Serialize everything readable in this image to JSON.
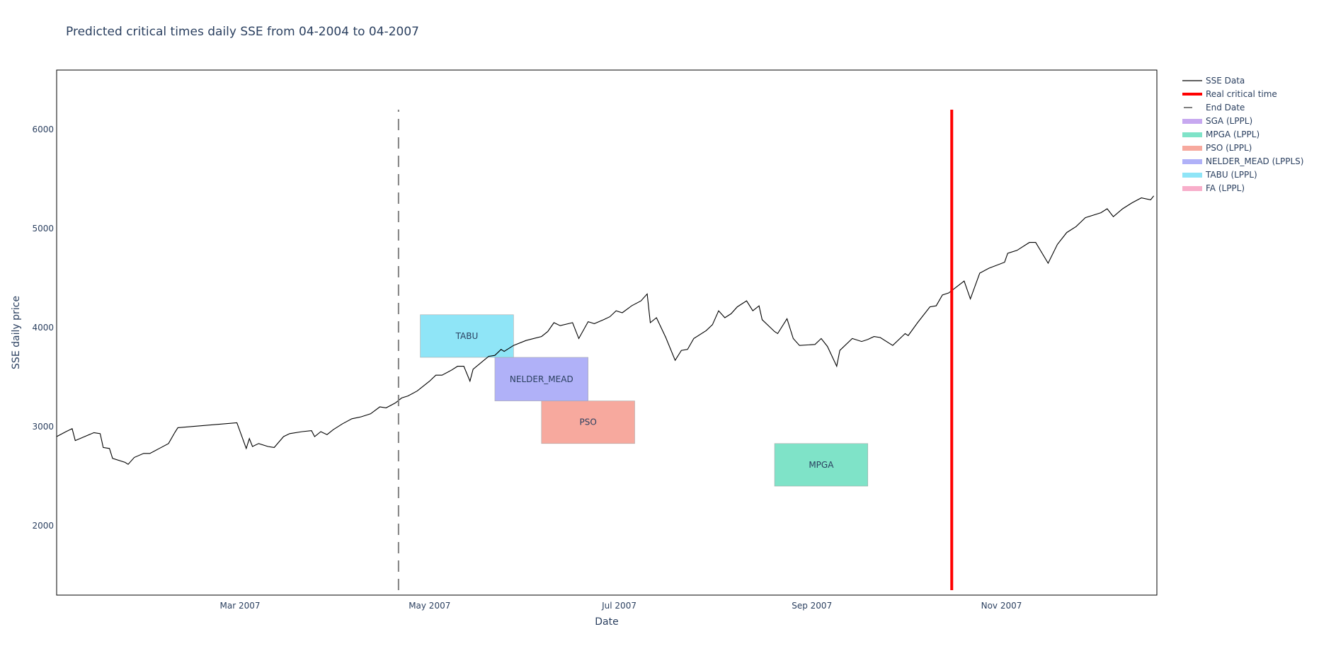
{
  "chart_data": {
    "type": "line",
    "title": "Predicted critical times daily SSE from 04-2004 to 04-2007",
    "xlabel": "Date",
    "ylabel": "SSE daily price",
    "x_range": [
      "2007-01-01",
      "2007-12-21"
    ],
    "y_range": [
      1300,
      6600
    ],
    "x_ticks": [
      {
        "date": "2007-03-01",
        "label": "Mar 2007"
      },
      {
        "date": "2007-05-01",
        "label": "May 2007"
      },
      {
        "date": "2007-07-01",
        "label": "Jul 2007"
      },
      {
        "date": "2007-09-01",
        "label": "Sep 2007"
      },
      {
        "date": "2007-11-01",
        "label": "Nov 2007"
      }
    ],
    "y_ticks": [
      {
        "value": 2000,
        "label": "2000"
      },
      {
        "value": 3000,
        "label": "3000"
      },
      {
        "value": 4000,
        "label": "4000"
      },
      {
        "value": 5000,
        "label": "5000"
      },
      {
        "value": 6000,
        "label": "6000"
      }
    ],
    "grid": false,
    "legend_position": "right",
    "series": [
      {
        "name": "SSE Data",
        "color": "#000000",
        "points": [
          [
            "2007-01-01",
            2900
          ],
          [
            "2007-01-04",
            2950
          ],
          [
            "2007-01-06",
            2980
          ],
          [
            "2007-01-07",
            2860
          ],
          [
            "2007-01-10",
            2900
          ],
          [
            "2007-01-13",
            2940
          ],
          [
            "2007-01-15",
            2930
          ],
          [
            "2007-01-16",
            2790
          ],
          [
            "2007-01-18",
            2780
          ],
          [
            "2007-01-19",
            2680
          ],
          [
            "2007-01-23",
            2640
          ],
          [
            "2007-01-24",
            2620
          ],
          [
            "2007-01-26",
            2690
          ],
          [
            "2007-01-29",
            2730
          ],
          [
            "2007-01-31",
            2730
          ],
          [
            "2007-02-03",
            2780
          ],
          [
            "2007-02-06",
            2830
          ],
          [
            "2007-02-08",
            2940
          ],
          [
            "2007-02-09",
            2990
          ],
          [
            "2007-02-28",
            3040
          ],
          [
            "2007-03-03",
            2780
          ],
          [
            "2007-03-04",
            2880
          ],
          [
            "2007-03-05",
            2800
          ],
          [
            "2007-03-07",
            2830
          ],
          [
            "2007-03-10",
            2800
          ],
          [
            "2007-03-12",
            2790
          ],
          [
            "2007-03-15",
            2900
          ],
          [
            "2007-03-17",
            2930
          ],
          [
            "2007-03-21",
            2950
          ],
          [
            "2007-03-24",
            2960
          ],
          [
            "2007-03-25",
            2900
          ],
          [
            "2007-03-27",
            2950
          ],
          [
            "2007-03-29",
            2920
          ],
          [
            "2007-03-31",
            2970
          ],
          [
            "2007-04-03",
            3030
          ],
          [
            "2007-04-06",
            3080
          ],
          [
            "2007-04-09",
            3100
          ],
          [
            "2007-04-12",
            3130
          ],
          [
            "2007-04-15",
            3200
          ],
          [
            "2007-04-17",
            3190
          ],
          [
            "2007-04-20",
            3240
          ],
          [
            "2007-04-22",
            3290
          ],
          [
            "2007-04-24",
            3310
          ],
          [
            "2007-04-27",
            3360
          ],
          [
            "2007-04-29",
            3410
          ],
          [
            "2007-05-01",
            3460
          ],
          [
            "2007-05-03",
            3520
          ],
          [
            "2007-05-05",
            3520
          ],
          [
            "2007-05-08",
            3570
          ],
          [
            "2007-05-10",
            3610
          ],
          [
            "2007-05-12",
            3610
          ],
          [
            "2007-05-14",
            3460
          ],
          [
            "2007-05-15",
            3580
          ],
          [
            "2007-05-20",
            3710
          ],
          [
            "2007-05-22",
            3720
          ],
          [
            "2007-05-24",
            3780
          ],
          [
            "2007-05-25",
            3760
          ],
          [
            "2007-05-28",
            3820
          ],
          [
            "2007-06-01",
            3870
          ],
          [
            "2007-06-06",
            3910
          ],
          [
            "2007-06-08",
            3960
          ],
          [
            "2007-06-10",
            4050
          ],
          [
            "2007-06-12",
            4020
          ],
          [
            "2007-06-16",
            4050
          ],
          [
            "2007-06-18",
            3890
          ],
          [
            "2007-06-21",
            4060
          ],
          [
            "2007-06-23",
            4040
          ],
          [
            "2007-06-26",
            4080
          ],
          [
            "2007-06-28",
            4110
          ],
          [
            "2007-06-30",
            4170
          ],
          [
            "2007-07-02",
            4150
          ],
          [
            "2007-07-05",
            4220
          ],
          [
            "2007-07-08",
            4270
          ],
          [
            "2007-07-10",
            4340
          ],
          [
            "2007-07-11",
            4050
          ],
          [
            "2007-07-13",
            4100
          ],
          [
            "2007-07-16",
            3900
          ],
          [
            "2007-07-19",
            3670
          ],
          [
            "2007-07-21",
            3770
          ],
          [
            "2007-07-23",
            3780
          ],
          [
            "2007-07-25",
            3890
          ],
          [
            "2007-07-29",
            3970
          ],
          [
            "2007-07-31",
            4030
          ],
          [
            "2007-08-02",
            4170
          ],
          [
            "2007-08-04",
            4100
          ],
          [
            "2007-08-06",
            4140
          ],
          [
            "2007-08-08",
            4210
          ],
          [
            "2007-08-11",
            4270
          ],
          [
            "2007-08-13",
            4170
          ],
          [
            "2007-08-15",
            4220
          ],
          [
            "2007-08-16",
            4080
          ],
          [
            "2007-08-20",
            3960
          ],
          [
            "2007-08-21",
            3940
          ],
          [
            "2007-08-24",
            4090
          ],
          [
            "2007-08-26",
            3890
          ],
          [
            "2007-08-28",
            3820
          ],
          [
            "2007-09-02",
            3830
          ],
          [
            "2007-09-04",
            3890
          ],
          [
            "2007-09-06",
            3810
          ],
          [
            "2007-09-09",
            3610
          ],
          [
            "2007-09-10",
            3770
          ],
          [
            "2007-09-14",
            3890
          ],
          [
            "2007-09-17",
            3860
          ],
          [
            "2007-09-19",
            3880
          ],
          [
            "2007-09-21",
            3910
          ],
          [
            "2007-09-23",
            3900
          ],
          [
            "2007-09-27",
            3820
          ],
          [
            "2007-10-01",
            3940
          ],
          [
            "2007-10-02",
            3920
          ],
          [
            "2007-10-05",
            4050
          ],
          [
            "2007-10-09",
            4210
          ],
          [
            "2007-10-11",
            4220
          ],
          [
            "2007-10-13",
            4330
          ],
          [
            "2007-10-15",
            4350
          ],
          [
            "2007-10-20",
            4470
          ],
          [
            "2007-10-22",
            4290
          ],
          [
            "2007-10-25",
            4550
          ],
          [
            "2007-10-28",
            4600
          ],
          [
            "2007-11-02",
            4660
          ],
          [
            "2007-11-03",
            4750
          ],
          [
            "2007-11-06",
            4780
          ],
          [
            "2007-11-10",
            4860
          ],
          [
            "2007-11-12",
            4860
          ],
          [
            "2007-11-16",
            4650
          ],
          [
            "2007-11-19",
            4840
          ],
          [
            "2007-11-22",
            4960
          ],
          [
            "2007-11-25",
            5020
          ],
          [
            "2007-11-28",
            5110
          ],
          [
            "2007-12-03",
            5160
          ],
          [
            "2007-12-05",
            5200
          ],
          [
            "2007-12-07",
            5120
          ],
          [
            "2007-12-10",
            5200
          ],
          [
            "2007-12-13",
            5260
          ],
          [
            "2007-12-16",
            5310
          ],
          [
            "2007-12-19",
            5290
          ],
          [
            "2007-12-20",
            5330
          ]
        ]
      }
    ],
    "vertical_lines": [
      {
        "name": "Real critical time",
        "date": "2007-10-16",
        "y": [
          1350,
          6200
        ],
        "color": "#ff0000",
        "dash": "solid"
      },
      {
        "name": "End Date",
        "date": "2007-04-21",
        "y": [
          1350,
          6200
        ],
        "color": "#808080",
        "dash": "dash"
      }
    ],
    "prediction_ranges": [
      {
        "name": "SGA (LPPL)",
        "color": "#c7a8f0",
        "label": "",
        "visible": false
      },
      {
        "name": "MPGA (LPPL)",
        "color": "#7fe3c8",
        "label": "MPGA",
        "x": [
          "2007-08-20",
          "2007-09-19"
        ],
        "y": [
          2400,
          2830
        ],
        "visible": true
      },
      {
        "name": "PSO (LPPL)",
        "color": "#f7a99e",
        "label": "PSO",
        "x": [
          "2007-06-06",
          "2007-07-06"
        ],
        "y": [
          2830,
          3260
        ],
        "visible": true
      },
      {
        "name": "NELDER_MEAD (LPPLS)",
        "color": "#b0b1f8",
        "label": "NELDER_MEAD",
        "x": [
          "2007-05-22",
          "2007-06-21"
        ],
        "y": [
          3260,
          3700
        ],
        "visible": true
      },
      {
        "name": "TABU (LPPL)",
        "color": "#8fe5f7",
        "label": "TABU",
        "x": [
          "2007-04-28",
          "2007-05-28"
        ],
        "y": [
          3700,
          4130
        ],
        "visible": true
      },
      {
        "name": "FA (LPPL)",
        "color": "#f8aeca",
        "label": "",
        "visible": false
      }
    ]
  }
}
